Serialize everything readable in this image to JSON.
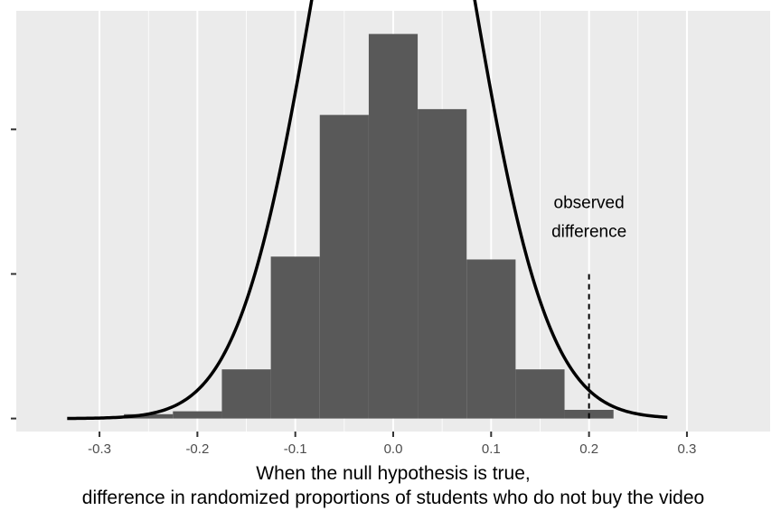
{
  "chart_data": {
    "type": "bar",
    "subtype": "histogram-with-density-curve",
    "title": "",
    "xlabel_lines": [
      "When the null hypothesis is true,",
      "difference in randomized proportions of students who do not buy the video"
    ],
    "ylabel": "",
    "xlim": [
      -0.385,
      0.385
    ],
    "x_ticks": [
      -0.3,
      -0.2,
      -0.1,
      0.0,
      0.1,
      0.2,
      0.3
    ],
    "x_tick_labels": [
      "-0.3",
      "-0.2",
      "-0.1",
      "0.0",
      "0.1",
      "0.2",
      "0.3"
    ],
    "y_tick_values": [
      0,
      1,
      2
    ],
    "y_tick_labels_visible": false,
    "bin_width": 0.05,
    "bins": [
      {
        "x0": -0.275,
        "x1": -0.225,
        "density": 0.03
      },
      {
        "x0": -0.225,
        "x1": -0.175,
        "density": 0.05
      },
      {
        "x0": -0.175,
        "x1": -0.125,
        "density": 0.34
      },
      {
        "x0": -0.125,
        "x1": -0.075,
        "density": 1.12
      },
      {
        "x0": -0.075,
        "x1": -0.025,
        "density": 2.1
      },
      {
        "x0": -0.025,
        "x1": 0.025,
        "density": 2.66
      },
      {
        "x0": 0.025,
        "x1": 0.075,
        "density": 2.14
      },
      {
        "x0": 0.075,
        "x1": 0.125,
        "density": 1.1
      },
      {
        "x0": 0.125,
        "x1": 0.175,
        "density": 0.34
      },
      {
        "x0": 0.175,
        "x1": 0.225,
        "density": 0.06
      }
    ],
    "ylim": [
      -0.09,
      2.82
    ],
    "curve": {
      "type": "normal",
      "mean": 0.0,
      "sd": 0.0783,
      "x_range": [
        -0.333,
        0.28
      ]
    },
    "observed_difference": 0.2,
    "observed_line_top": 1.0,
    "annotation_lines": [
      "observed",
      "difference"
    ],
    "annotation_x": 0.2,
    "annotation_y_values": [
      1.5,
      1.3
    ],
    "grid": true,
    "legend": "none",
    "colors": {
      "panel": "#ebebeb",
      "grid_major": "#ffffff",
      "bars": "#595959",
      "curve": "#000000",
      "observed_line": "#000000"
    }
  }
}
